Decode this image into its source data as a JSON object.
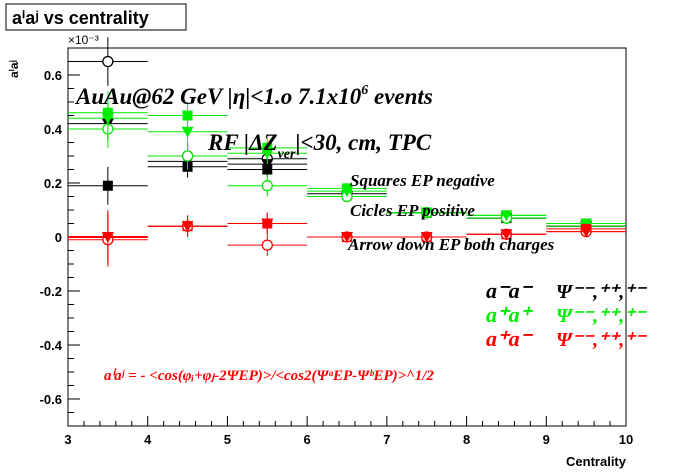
{
  "chart_data": {
    "type": "scatter",
    "title": "aⁱaʲ vs centrality",
    "xlabel": "Centrality",
    "ylabel": "aⁱaʲ",
    "y_exponent_label": "×10⁻³",
    "xlim": [
      3,
      10
    ],
    "ylim": [
      -0.7,
      0.7
    ],
    "x_ticks": [
      "3",
      "4",
      "5",
      "6",
      "7",
      "8",
      "9",
      "10"
    ],
    "y_ticks": [
      "-0.6",
      "-0.4",
      "-0.2",
      "0",
      "0.2",
      "0.4",
      "0.6"
    ],
    "y_tick_values": [
      -0.6,
      -0.4,
      -0.2,
      0,
      0.2,
      0.4,
      0.6
    ],
    "annotations": {
      "line1_main": "AuAu@62 GeV |η|<1.o 7.1x10",
      "line1_sup": "6",
      "line1_end": " events",
      "line2_a": "RF |ΔZ",
      "line2_sub": "ver",
      "line2_b": "|<30, cm, TPC",
      "note1": "Squares EP negative",
      "note2": "Cicles EP positive",
      "note3": "Arrow down EP both charges",
      "formula": "aⁱaʲ = - <cos(φᵢ+φⱼ-2ΨEP)>/<cos2(ΨᵃEP-ΨᵇEP)>^1/2"
    },
    "legend": [
      {
        "pair": "a⁻a⁻",
        "psi": "Ψ⁻⁻,⁺⁺,⁺⁻",
        "color": "#000000"
      },
      {
        "pair": "a⁺a⁺",
        "psi": "Ψ⁻⁻,⁺⁺,⁺⁻",
        "color": "#00ee00"
      },
      {
        "pair": "a⁺a⁻",
        "psi": "Ψ⁻⁻,⁺⁺,⁺⁻",
        "color": "#ff0000"
      }
    ],
    "series": [
      {
        "color": "#000000",
        "marker": "square",
        "x": [
          3.5,
          4.5,
          5.5,
          6.5,
          7.5,
          8.5,
          9.5
        ],
        "y": [
          0.19,
          0.26,
          0.25,
          0.16,
          0.09,
          0.07,
          0.05
        ],
        "err": [
          0.07,
          0.04,
          0.03,
          0.02,
          0.015,
          0.015,
          0.015
        ]
      },
      {
        "color": "#000000",
        "marker": "circle",
        "x": [
          3.5,
          4.5,
          5.5,
          6.5,
          7.5,
          8.5,
          9.5
        ],
        "y": [
          0.65,
          0.3,
          0.29,
          0.15,
          0.09,
          0.07,
          0.04
        ],
        "err": [
          0.09,
          0.05,
          0.04,
          0.02,
          0.015,
          0.015,
          0.015
        ]
      },
      {
        "color": "#000000",
        "marker": "triangle",
        "x": [
          3.5,
          4.5,
          5.5,
          6.5,
          7.5,
          8.5,
          9.5
        ],
        "y": [
          0.42,
          0.28,
          0.27,
          0.15,
          0.09,
          0.07,
          0.04
        ],
        "err": [
          0.06,
          0.04,
          0.03,
          0.02,
          0.015,
          0.015,
          0.015
        ]
      },
      {
        "color": "#00ee00",
        "marker": "square",
        "x": [
          3.5,
          4.5,
          5.5,
          6.5,
          7.5,
          8.5,
          9.5
        ],
        "y": [
          0.46,
          0.45,
          0.33,
          0.18,
          0.09,
          0.08,
          0.05
        ],
        "err": [
          0.08,
          0.05,
          0.04,
          0.02,
          0.015,
          0.015,
          0.015
        ]
      },
      {
        "color": "#00ee00",
        "marker": "circle",
        "x": [
          3.5,
          4.5,
          5.5,
          6.5,
          7.5,
          8.5,
          9.5
        ],
        "y": [
          0.4,
          0.3,
          0.19,
          0.15,
          0.09,
          0.07,
          0.04
        ],
        "err": [
          0.07,
          0.05,
          0.04,
          0.02,
          0.015,
          0.015,
          0.015
        ]
      },
      {
        "color": "#00ee00",
        "marker": "triangle",
        "x": [
          3.5,
          4.5,
          5.5,
          6.5,
          7.5,
          8.5,
          9.5
        ],
        "y": [
          0.44,
          0.39,
          0.31,
          0.17,
          0.09,
          0.08,
          0.05
        ],
        "err": [
          0.06,
          0.05,
          0.04,
          0.02,
          0.015,
          0.015,
          0.015
        ]
      },
      {
        "color": "#ff0000",
        "marker": "square",
        "x": [
          3.5,
          4.5,
          5.5,
          6.5,
          7.5,
          8.5,
          9.5
        ],
        "y": [
          0.0,
          0.04,
          0.05,
          0.0,
          0.0,
          0.01,
          0.03
        ],
        "err": [
          0.1,
          0.04,
          0.04,
          0.02,
          0.015,
          0.015,
          0.015
        ]
      },
      {
        "color": "#ff0000",
        "marker": "circle",
        "x": [
          3.5,
          4.5,
          5.5,
          6.5,
          7.5,
          8.5,
          9.5
        ],
        "y": [
          -0.01,
          0.04,
          -0.03,
          0.0,
          0.0,
          0.01,
          0.02
        ],
        "err": [
          0.1,
          0.04,
          0.04,
          0.02,
          0.015,
          0.015,
          0.015
        ]
      },
      {
        "color": "#ff0000",
        "marker": "triangle",
        "x": [
          3.5,
          4.5,
          5.5,
          6.5,
          7.5,
          8.5,
          9.5
        ],
        "y": [
          0.0,
          0.04,
          0.05,
          0.0,
          0.0,
          0.01,
          0.02
        ],
        "err": [
          0.09,
          0.04,
          0.04,
          0.02,
          0.015,
          0.015,
          0.015
        ]
      }
    ]
  }
}
